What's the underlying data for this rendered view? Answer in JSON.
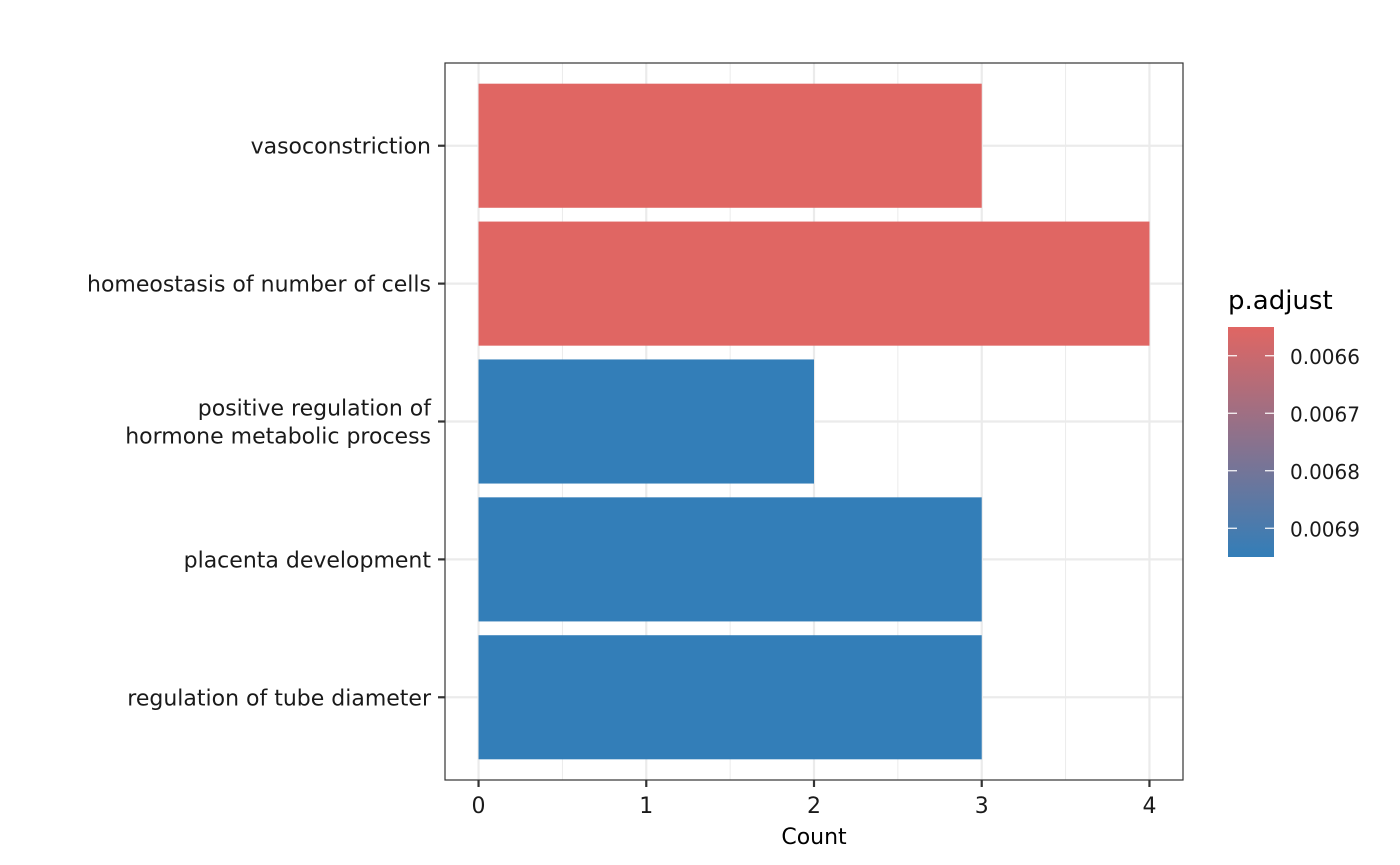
{
  "chart_data": {
    "type": "bar",
    "orientation": "horizontal",
    "title": "",
    "xlabel": "Count",
    "ylabel": "",
    "xlim": [
      -0.2,
      4.2
    ],
    "x_ticks": [
      0,
      1,
      2,
      3,
      4
    ],
    "grid": true,
    "categories": [
      "vasoconstriction",
      "homeostasis of number of cells",
      "positive regulation of\nhormone metabolic process",
      "placenta development",
      "regulation of tube diameter"
    ],
    "values": [
      3,
      4,
      2,
      3,
      3
    ],
    "p_adjust": [
      0.00655,
      0.00655,
      0.00695,
      0.00695,
      0.00695
    ],
    "legend": {
      "title": "p.adjust",
      "placement": "right",
      "ticks": [
        "0.0066",
        "0.0067",
        "0.0068",
        "0.0069"
      ],
      "tick_values": [
        0.0066,
        0.0067,
        0.0068,
        0.0069
      ],
      "range": [
        0.00655,
        0.00695
      ],
      "color_low": "#E06663",
      "color_high": "#337EB8"
    }
  }
}
